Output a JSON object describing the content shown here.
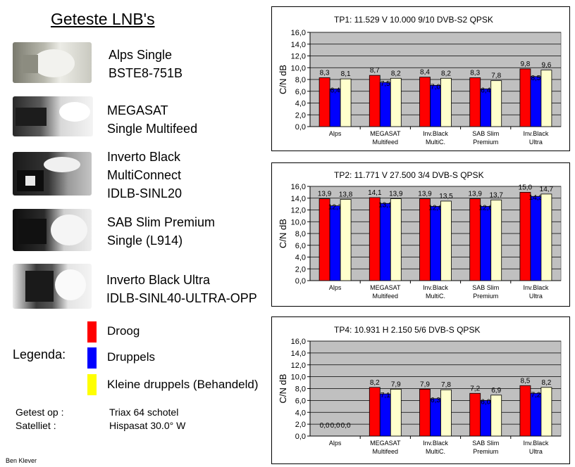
{
  "page_title": "Geteste LNB's",
  "lnbs": [
    {
      "lines": [
        "Alps Single",
        "BSTE8-751B"
      ]
    },
    {
      "lines": [
        "MEGASAT",
        "Single Multifeed"
      ]
    },
    {
      "lines": [
        "Inverto Black",
        "MultiConnect",
        "IDLB-SINL20"
      ]
    },
    {
      "lines": [
        "SAB Slim Premium",
        "Single (L914)"
      ]
    },
    {
      "lines": [
        "Inverto Black Ultra",
        "IDLB-SINL40-ULTRA-OPP"
      ]
    }
  ],
  "legend": {
    "title": "Legenda:",
    "items": [
      {
        "label": "Droog",
        "color": "#ff0000"
      },
      {
        "label": "Druppels",
        "color": "#0000ff"
      },
      {
        "label": "Kleine druppels (Behandeld)",
        "color": "#ffff00"
      }
    ]
  },
  "info": {
    "tested_label": "Getest op :",
    "tested_value": "Triax 64 schotel",
    "satellite_label": "Satelliet   :",
    "satellite_value": "Hispasat 30.0° W"
  },
  "author": "Ben Klever",
  "chart_data": [
    {
      "type": "bar",
      "title": "TP1: 11.529  V  10.000  9/10  DVB-S2 QPSK",
      "ylabel": "C/N dB",
      "ylim": [
        0,
        16
      ],
      "ytick_step": 2,
      "grid": true,
      "categories": [
        [
          "Alps"
        ],
        [
          "MEGASAT",
          "Multifeed"
        ],
        [
          "Inv.Black",
          "MultiC."
        ],
        [
          "SAB Slim",
          "Premium"
        ],
        [
          "Inv.Black",
          "Ultra"
        ]
      ],
      "series": [
        {
          "name": "Droog",
          "color": "#ff0000",
          "values": [
            8.3,
            8.7,
            8.4,
            8.3,
            9.8
          ]
        },
        {
          "name": "Druppels",
          "color": "#0000ff",
          "values": [
            6.4,
            7.5,
            7.0,
            6.4,
            8.5
          ]
        },
        {
          "name": "Kleine druppels (Behandeld)",
          "color": "#ffffcc",
          "values": [
            8.1,
            8.2,
            8.2,
            7.8,
            9.6
          ]
        }
      ],
      "data_labels": [
        [
          "8,3",
          "6,4",
          "8,1"
        ],
        [
          "8,7",
          "7,5",
          "8,2"
        ],
        [
          "8,4",
          "7,0",
          "8,2"
        ],
        [
          "8,3",
          "6,4",
          "7,8"
        ],
        [
          "9,8",
          "8,5",
          "9,6"
        ]
      ]
    },
    {
      "type": "bar",
      "title": "TP2: 11.771  V  27.500  3/4  DVB-S QPSK",
      "ylabel": "C/N dB",
      "ylim": [
        0,
        16
      ],
      "ytick_step": 2,
      "grid": true,
      "categories": [
        [
          "Alps"
        ],
        [
          "MEGASAT",
          "Multifeed"
        ],
        [
          "Inv.Black",
          "MultiC."
        ],
        [
          "SAB Slim",
          "Premium"
        ],
        [
          "Inv.Black",
          "Ultra"
        ]
      ],
      "series": [
        {
          "name": "Droog",
          "color": "#ff0000",
          "values": [
            13.9,
            14.1,
            13.9,
            13.9,
            15.0
          ]
        },
        {
          "name": "Druppels",
          "color": "#0000ff",
          "values": [
            12.7,
            13.1,
            12.6,
            12.6,
            14.3
          ]
        },
        {
          "name": "Kleine druppels (Behandeld)",
          "color": "#ffffcc",
          "values": [
            13.8,
            13.9,
            13.5,
            13.7,
            14.7
          ]
        }
      ],
      "data_labels": [
        [
          "13,9",
          "12,7",
          "13,8"
        ],
        [
          "14,1",
          "13,1",
          "13,9"
        ],
        [
          "13,9",
          "12,6",
          "13,5"
        ],
        [
          "13,9",
          "12,6",
          "13,7"
        ],
        [
          "15,0",
          "14,3",
          "14,7"
        ]
      ]
    },
    {
      "type": "bar",
      "title": "TP4: 10.931  H   2.150  5/6  DVB-S QPSK",
      "ylabel": "C/N dB",
      "ylim": [
        0,
        16
      ],
      "ytick_step": 2,
      "grid": true,
      "categories": [
        [
          "Alps"
        ],
        [
          "MEGASAT",
          "Multifeed"
        ],
        [
          "Inv.Black",
          "MultiC."
        ],
        [
          "SAB Slim",
          "Premium"
        ],
        [
          "Inv.Black",
          "Ultra"
        ]
      ],
      "series": [
        {
          "name": "Droog",
          "color": "#ff0000",
          "values": [
            0.0,
            8.2,
            7.9,
            7.2,
            8.5
          ]
        },
        {
          "name": "Druppels",
          "color": "#0000ff",
          "values": [
            0.0,
            7.1,
            6.3,
            6.0,
            7.2
          ]
        },
        {
          "name": "Kleine druppels (Behandeld)",
          "color": "#ffffcc",
          "values": [
            0.0,
            7.9,
            7.8,
            6.9,
            8.2
          ]
        }
      ],
      "data_labels": [
        [
          "0,0",
          "0,0",
          "0,0"
        ],
        [
          "8,2",
          "7,1",
          "7,9"
        ],
        [
          "7,9",
          "6,3",
          "7,8"
        ],
        [
          "7,2",
          "6,0",
          "6,9"
        ],
        [
          "8,5",
          "7,2",
          "8,2"
        ]
      ]
    }
  ]
}
